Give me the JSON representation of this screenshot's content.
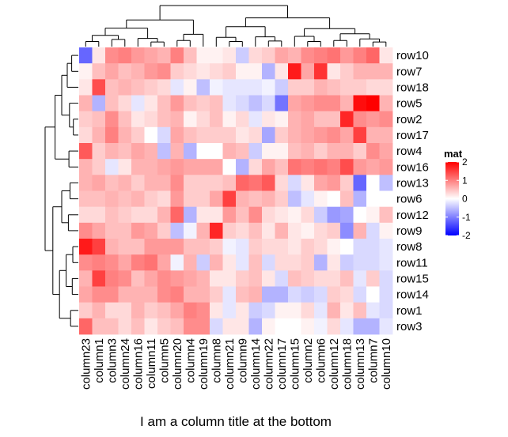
{
  "chart_data": {
    "type": "heatmap",
    "title": "",
    "column_title_bottom": "I am a column title at the bottom",
    "rows": [
      "row10",
      "row7",
      "row18",
      "row5",
      "row2",
      "row17",
      "row4",
      "row16",
      "row13",
      "row6",
      "row12",
      "row9",
      "row8",
      "row11",
      "row15",
      "row14",
      "row1",
      "row3"
    ],
    "columns": [
      "column23",
      "column1",
      "column3",
      "column24",
      "column16",
      "column11",
      "column5",
      "column20",
      "column4",
      "column19",
      "column8",
      "column21",
      "column9",
      "column14",
      "column22",
      "column17",
      "column15",
      "column2",
      "column6",
      "column12",
      "column18",
      "column13",
      "column7",
      "column10"
    ],
    "values": [
      [
        -1.2,
        0.2,
        0.9,
        1.0,
        0.8,
        0.7,
        0.6,
        1.0,
        0.5,
        0.1,
        0.1,
        0.2,
        -0.4,
        0.3,
        0.4,
        0.7,
        0.6,
        0.9,
        1.0,
        1.1,
        0.8,
        1.0,
        1.2,
        0.2
      ],
      [
        0.1,
        0.5,
        0.7,
        0.5,
        0.6,
        0.8,
        0.9,
        0.4,
        0.3,
        0.2,
        0.3,
        0.4,
        0.1,
        0.1,
        -0.6,
        0.2,
        1.8,
        0.7,
        1.6,
        0.2,
        0.4,
        0.6,
        0.6,
        0.6
      ],
      [
        0.2,
        1.4,
        0.5,
        0.6,
        0.5,
        0.4,
        0.3,
        -0.2,
        0.1,
        -0.5,
        -0.1,
        -0.2,
        -0.2,
        -0.2,
        -0.1,
        -0.4,
        0.4,
        0.4,
        0.6,
        0.5,
        0.4,
        0.4,
        0.3,
        0.3
      ],
      [
        0.6,
        -0.6,
        0.5,
        0.3,
        -0.2,
        0.2,
        0.5,
        0.8,
        0.5,
        0.4,
        0.5,
        -0.2,
        -0.3,
        -0.5,
        -0.3,
        -1.1,
        0.7,
        0.8,
        0.9,
        0.9,
        0.6,
        1.9,
        2.0,
        0.6
      ],
      [
        0.4,
        0.5,
        0.9,
        0.5,
        0.2,
        0.3,
        0.5,
        0.6,
        0.1,
        0.3,
        0.5,
        0.1,
        0.3,
        -0.2,
        0.2,
        0.1,
        0.6,
        0.7,
        0.5,
        0.5,
        1.7,
        0.9,
        0.8,
        0.9
      ],
      [
        0.3,
        0.6,
        1.0,
        0.6,
        0.4,
        0.0,
        -0.3,
        0.7,
        0.5,
        0.4,
        0.4,
        0.4,
        0.2,
        0.3,
        -0.7,
        0.4,
        0.6,
        0.7,
        0.8,
        0.9,
        0.7,
        1.5,
        0.6,
        0.6
      ],
      [
        1.3,
        0.4,
        0.6,
        0.5,
        0.7,
        0.6,
        -0.5,
        0.6,
        -0.6,
        0.0,
        0.0,
        0.6,
        0.5,
        -0.4,
        0.1,
        0.1,
        0.5,
        0.6,
        0.4,
        0.6,
        0.6,
        0.4,
        0.9,
        0.7
      ],
      [
        0.6,
        0.4,
        -0.2,
        0.2,
        0.6,
        0.6,
        0.7,
        0.8,
        0.7,
        0.7,
        0.7,
        0.0,
        -0.6,
        0.3,
        0.7,
        0.5,
        1.1,
        1.0,
        1.1,
        1.0,
        1.4,
        0.8,
        0.7,
        0.8
      ],
      [
        0.6,
        0.7,
        0.5,
        0.6,
        0.4,
        0.6,
        0.6,
        0.9,
        0.4,
        0.4,
        0.4,
        0.5,
        1.2,
        1.1,
        1.3,
        0.3,
        -0.3,
        0.2,
        0.7,
        0.8,
        0.4,
        -1.2,
        0.0,
        -0.5
      ],
      [
        0.5,
        0.5,
        0.6,
        0.5,
        0.6,
        0.4,
        0.3,
        0.8,
        0.4,
        0.4,
        0.7,
        1.5,
        0.6,
        0.5,
        0.6,
        0.4,
        -0.5,
        -0.2,
        0.1,
        0.0,
        0.5,
        -0.6,
        0.0,
        0.0
      ],
      [
        0.3,
        0.3,
        0.5,
        0.4,
        0.3,
        0.3,
        0.6,
        1.2,
        -0.6,
        0.2,
        0.2,
        0.8,
        0.5,
        0.9,
        0.3,
        0.2,
        0.1,
        0.3,
        -0.4,
        -0.8,
        -0.7,
        0.0,
        0.1,
        0.5
      ],
      [
        0.9,
        0.7,
        0.5,
        0.5,
        0.8,
        0.7,
        0.4,
        -0.5,
        -0.1,
        0.6,
        1.7,
        0.4,
        0.3,
        0.5,
        0.2,
        0.6,
        0.2,
        0.1,
        0.3,
        0.4,
        -0.9,
        0.6,
        -0.3,
        0.1
      ],
      [
        1.8,
        1.5,
        0.6,
        0.5,
        0.5,
        0.8,
        0.8,
        0.8,
        0.5,
        0.5,
        0.4,
        -0.1,
        -0.2,
        0.4,
        0.3,
        0.3,
        0.2,
        0.4,
        0.3,
        0.1,
        0.0,
        -0.3,
        -0.3,
        -0.2
      ],
      [
        0.9,
        1.0,
        0.9,
        0.7,
        1.0,
        1.1,
        0.7,
        -0.1,
        0.6,
        -0.4,
        0.6,
        0.2,
        -0.2,
        0.5,
        -0.3,
        0.3,
        0.3,
        0.4,
        -0.6,
        0.2,
        -0.4,
        -0.3,
        -0.3,
        -0.2
      ],
      [
        0.6,
        1.5,
        1.0,
        0.9,
        0.5,
        0.7,
        0.9,
        0.8,
        0.7,
        0.6,
        0.2,
        0.2,
        0.4,
        0.5,
        0.2,
        -0.3,
        0.5,
        0.4,
        0.3,
        0.3,
        0.5,
        -0.2,
        0.4,
        -0.3
      ],
      [
        0.7,
        0.9,
        0.9,
        0.6,
        0.6,
        0.6,
        0.9,
        1.0,
        0.6,
        0.6,
        0.4,
        -0.2,
        0.5,
        0.6,
        -0.6,
        -0.6,
        -0.3,
        -0.4,
        -0.3,
        0.4,
        0.3,
        -0.3,
        0.0,
        -0.3
      ],
      [
        0.4,
        0.6,
        0.3,
        0.3,
        0.6,
        0.4,
        0.5,
        0.7,
        1.0,
        0.9,
        0.2,
        -0.2,
        0.2,
        -0.4,
        -0.3,
        0.1,
        0.1,
        0.3,
        -0.2,
        0.6,
        0.2,
        0.5,
        -0.2,
        -0.3
      ],
      [
        1.2,
        0.5,
        0.5,
        0.3,
        0.5,
        0.2,
        0.4,
        0.5,
        0.9,
        0.9,
        -0.3,
        0.2,
        0.2,
        -0.6,
        0.1,
        0.0,
        0.0,
        0.1,
        -0.1,
        0.3,
        -0.2,
        -0.6,
        -0.6,
        -0.2
      ]
    ],
    "color_scale": {
      "min": -2,
      "mid": 0,
      "max": 2,
      "low_color": "#0000ff",
      "mid_color": "#ffffff",
      "high_color": "#ff0000"
    },
    "legend": {
      "title": "mat",
      "ticks": [
        2,
        1,
        0,
        -1,
        -2
      ],
      "placement": "right"
    },
    "row_dendrogram": "left",
    "column_dendrogram": "top"
  }
}
